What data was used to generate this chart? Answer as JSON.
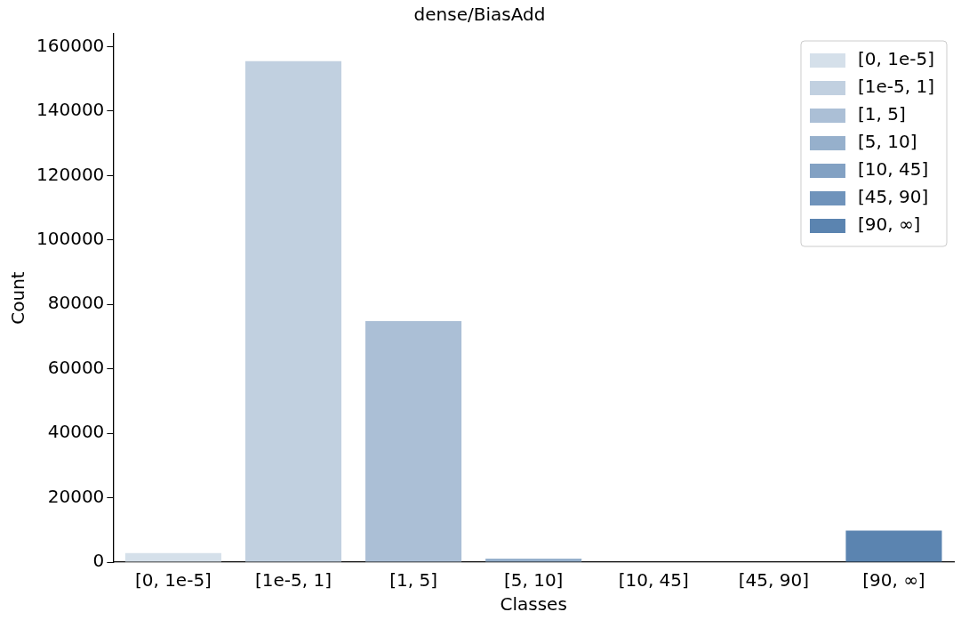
{
  "chart_data": {
    "type": "bar",
    "title": "dense/BiasAdd",
    "xlabel": "Classes",
    "ylabel": "Count",
    "categories": [
      "[0, 1e-5]",
      "[1e-5, 1]",
      "[1, 5]",
      "[5, 10]",
      "[10, 45]",
      "[45, 90]",
      "[90, ∞]"
    ],
    "series": [
      {
        "name": "[0, 1e-5]",
        "color": "#d5e0ea",
        "values": [
          2800,
          null,
          null,
          null,
          null,
          null,
          null
        ]
      },
      {
        "name": "[1e-5, 1]",
        "color": "#c1d0e0",
        "values": [
          null,
          155500,
          null,
          null,
          null,
          null,
          null
        ]
      },
      {
        "name": "[1, 5]",
        "color": "#abbfd6",
        "values": [
          null,
          null,
          74800,
          null,
          null,
          null,
          null
        ]
      },
      {
        "name": "[5, 10]",
        "color": "#96b0cc",
        "values": [
          null,
          null,
          null,
          1100,
          null,
          null,
          null
        ]
      },
      {
        "name": "[10, 45]",
        "color": "#82a1c3",
        "values": [
          null,
          null,
          null,
          null,
          0,
          null,
          null
        ]
      },
      {
        "name": "[45, 90]",
        "color": "#6f93bb",
        "values": [
          null,
          null,
          null,
          null,
          null,
          0,
          null
        ]
      },
      {
        "name": "[90, ∞]",
        "color": "#5b84b0",
        "values": [
          null,
          null,
          null,
          null,
          null,
          null,
          9800
        ]
      }
    ],
    "ylim": [
      0,
      164000
    ],
    "yticks": [
      0,
      20000,
      40000,
      60000,
      80000,
      100000,
      120000,
      140000,
      160000
    ],
    "grid": false,
    "legend": "top right"
  }
}
